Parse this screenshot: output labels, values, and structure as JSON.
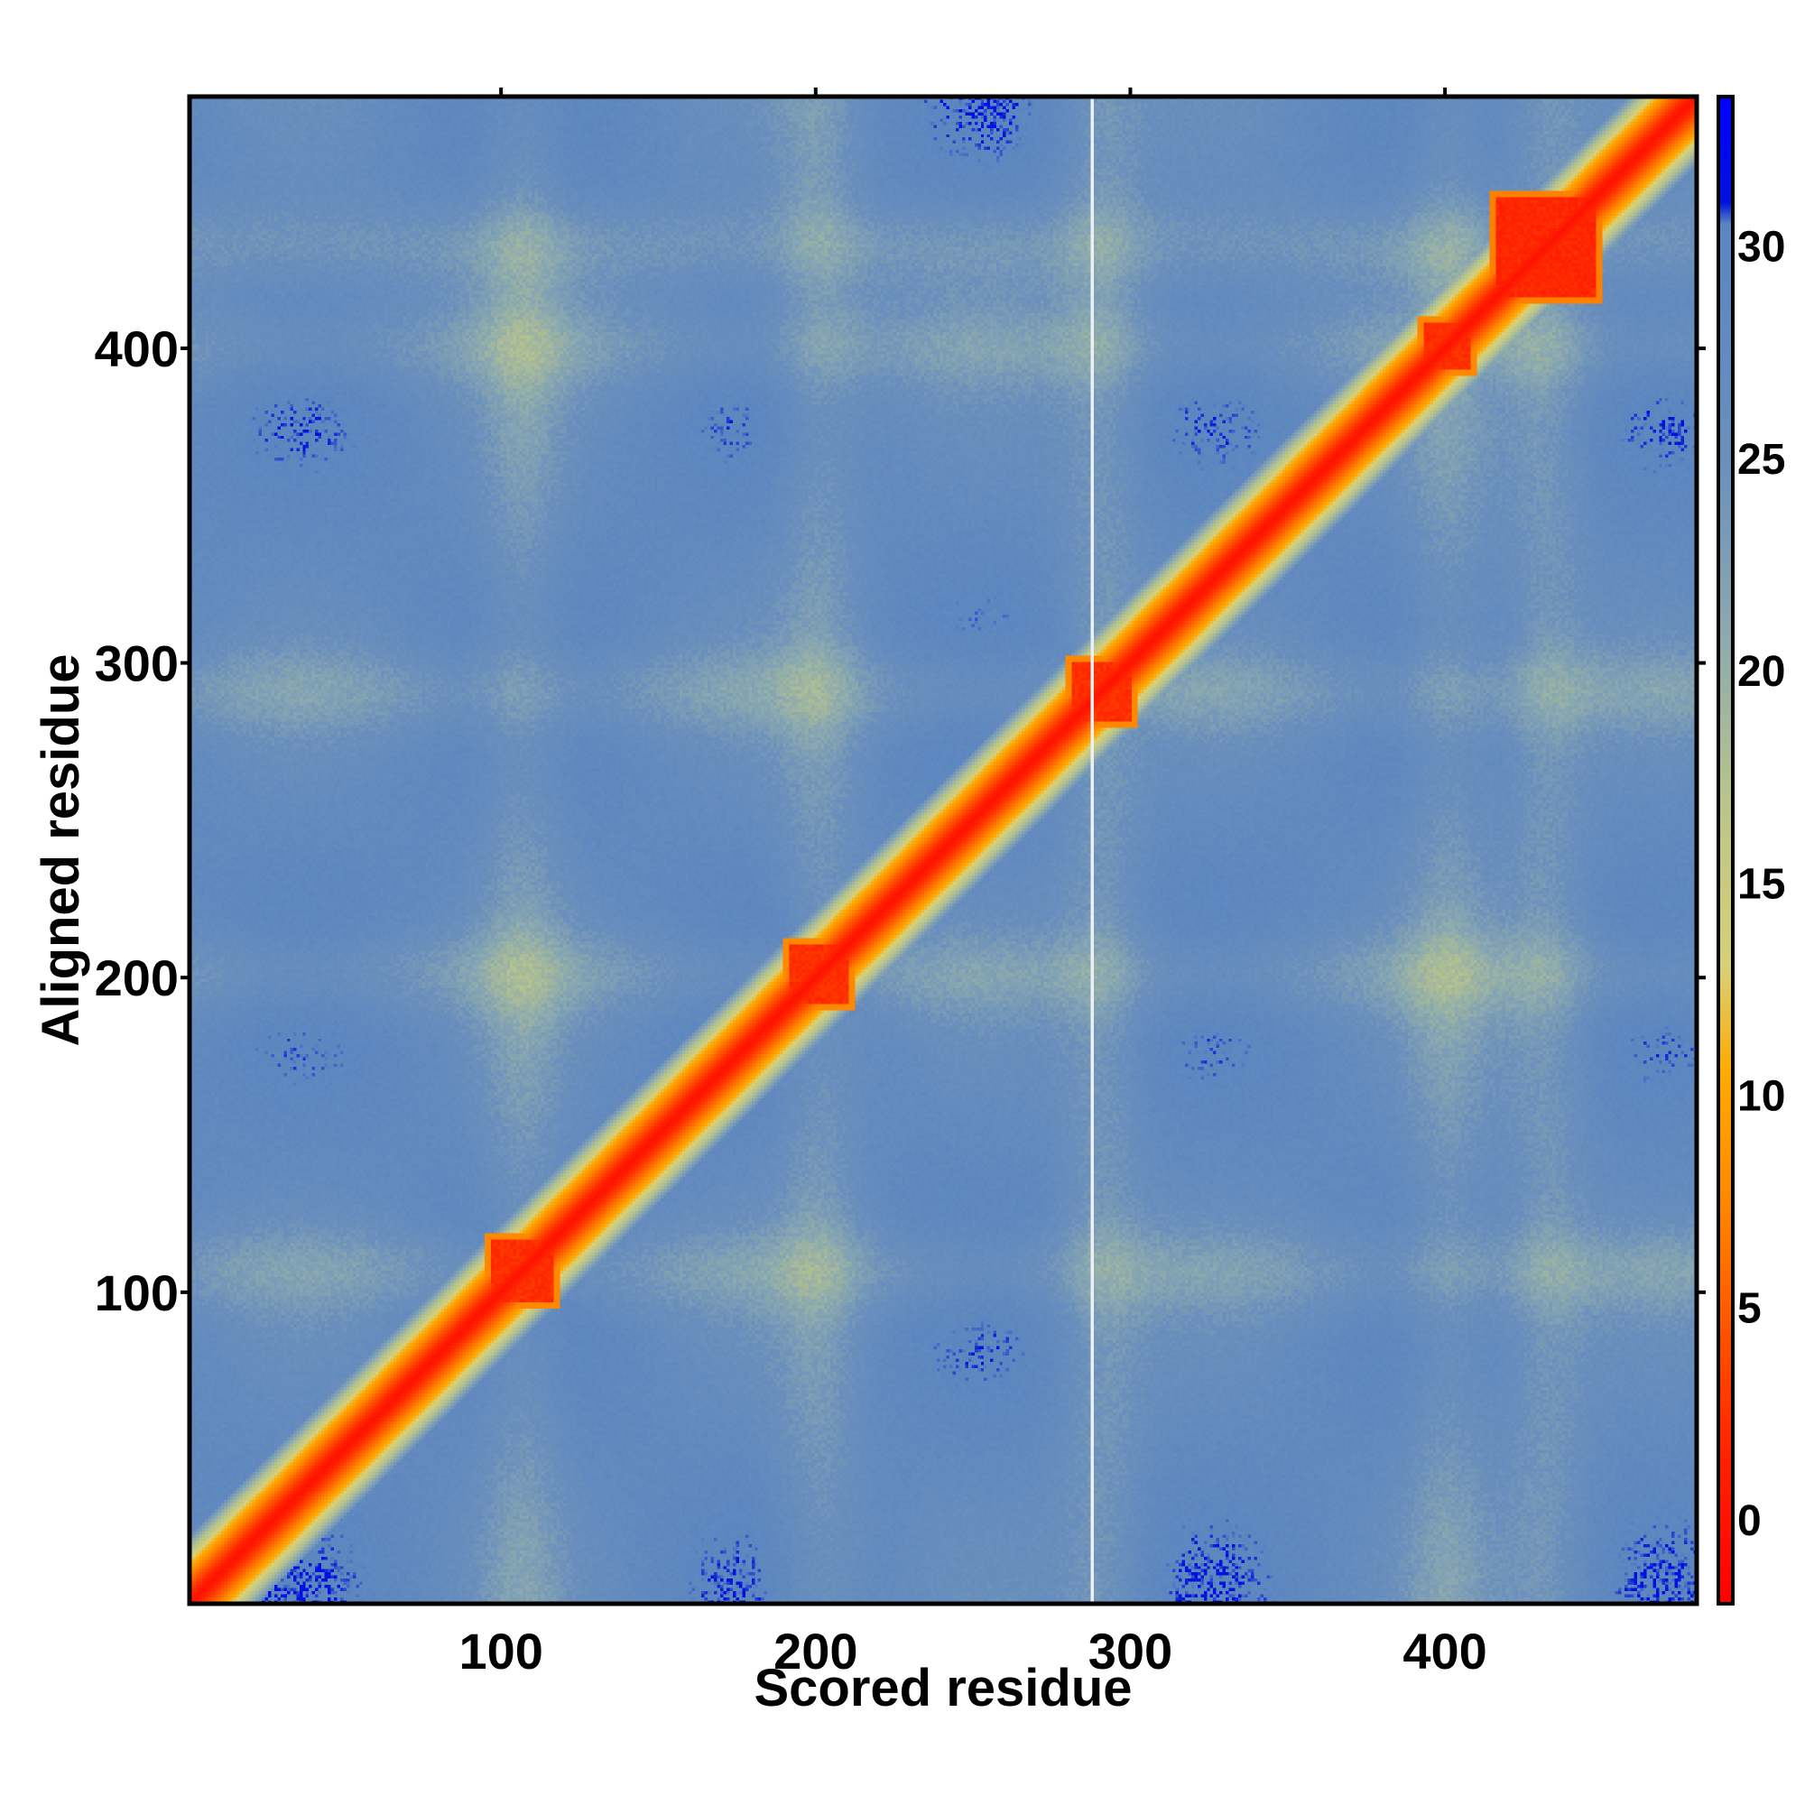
{
  "chart_data": {
    "type": "heatmap",
    "title": "",
    "xlabel": "Scored residue",
    "ylabel": "Aligned residue",
    "xlim": [
      1,
      480
    ],
    "ylim": [
      1,
      480
    ],
    "x_ticks": [
      100,
      200,
      300,
      400
    ],
    "y_ticks": [
      100,
      200,
      300,
      400
    ],
    "n_residues": 480,
    "colorbar": {
      "range": [
        -2,
        33.5
      ],
      "ticks": [
        0,
        5,
        10,
        15,
        20,
        25,
        30
      ],
      "stops": [
        {
          "value": -2,
          "color": "#ff0000"
        },
        {
          "value": 1.5,
          "color": "#ff2200"
        },
        {
          "value": 4.5,
          "color": "#ff5500"
        },
        {
          "value": 7.5,
          "color": "#ff8800"
        },
        {
          "value": 10.5,
          "color": "#ffaa00"
        },
        {
          "value": 13,
          "color": "#d8d078"
        },
        {
          "value": 17,
          "color": "#b8c48c"
        },
        {
          "value": 21,
          "color": "#8aa8b0"
        },
        {
          "value": 25,
          "color": "#6a8fbc"
        },
        {
          "value": 30.5,
          "color": "#5a85c0"
        },
        {
          "value": 31,
          "color": "#0011dd"
        },
        {
          "value": 33.5,
          "color": "#0000ff"
        }
      ]
    },
    "diagonal_value": 0,
    "background_value": 28,
    "domain_blocks": [
      {
        "start": 95,
        "end": 118,
        "value": 1.5
      },
      {
        "start": 190,
        "end": 212,
        "value": 1.5
      },
      {
        "start": 280,
        "end": 302,
        "value": 1.5
      },
      {
        "start": 392,
        "end": 410,
        "value": 1.5
      },
      {
        "start": 415,
        "end": 450,
        "value": 1.0
      }
    ],
    "gap_column_x": 288
  }
}
